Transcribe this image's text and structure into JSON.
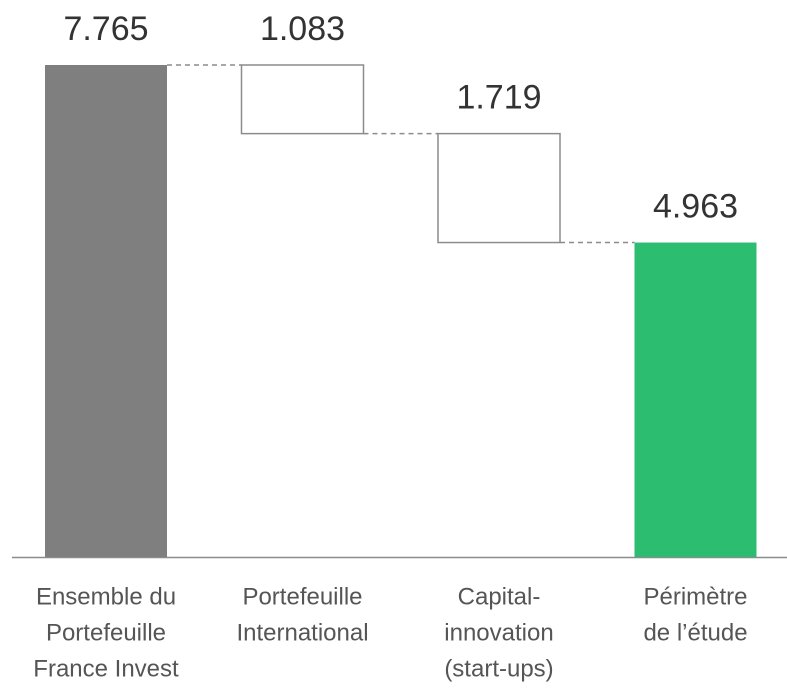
{
  "chart_data": {
    "type": "waterfall",
    "categories": [
      [
        "Ensemble du",
        "Portefeuille",
        "France Invest"
      ],
      [
        "Portefeuille",
        "International"
      ],
      [
        "Capital-",
        "innovation",
        "(start-ups)"
      ],
      [
        "Périmètre",
        "de l’étude"
      ]
    ],
    "values": [
      7.765,
      1.083,
      1.719,
      4.963
    ],
    "measures": [
      "absolute",
      "decrease",
      "decrease",
      "total"
    ],
    "colors": [
      "#7f7f7f",
      "#ffffff",
      "#ffffff",
      "#2dbd71"
    ],
    "border_color": "#8c8c8c"
  }
}
